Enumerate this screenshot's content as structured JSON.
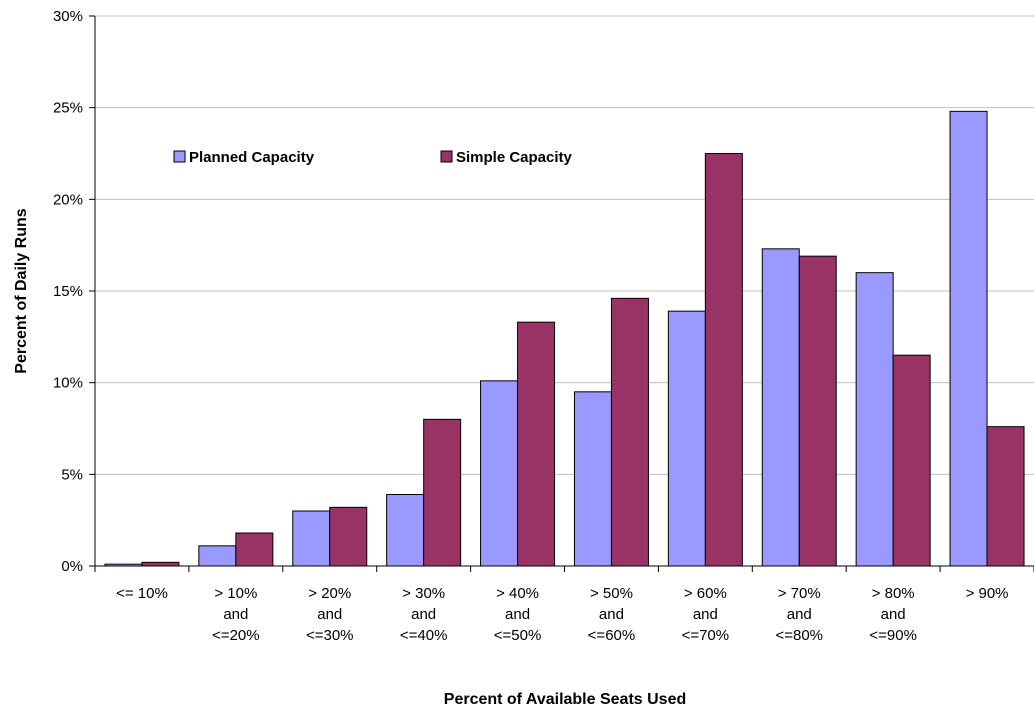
{
  "chart_data": {
    "type": "bar",
    "title": "",
    "xlabel": "Percent of Available Seats Used",
    "ylabel": "Percent of Daily Runs",
    "ylim": [
      0,
      30
    ],
    "yticks": [
      "0%",
      "5%",
      "10%",
      "15%",
      "20%",
      "25%",
      "30%"
    ],
    "grid": true,
    "legend_position": "top-left",
    "categories": [
      [
        "<= 10%"
      ],
      [
        "> 10%",
        "and",
        "<=20%"
      ],
      [
        "> 20%",
        "and",
        "<=30%"
      ],
      [
        "> 30%",
        "and",
        "<=40%"
      ],
      [
        "> 40%",
        "and",
        "<=50%"
      ],
      [
        "> 50%",
        "and",
        "<=60%"
      ],
      [
        "> 60%",
        "and",
        "<=70%"
      ],
      [
        "> 70%",
        "and",
        "<=80%"
      ],
      [
        "> 80%",
        "and",
        "<=90%"
      ],
      [
        "> 90%"
      ]
    ],
    "series": [
      {
        "name": "Planned Capacity",
        "color": "#9999FF",
        "values": [
          0.1,
          1.1,
          3.0,
          3.9,
          10.1,
          9.5,
          13.9,
          17.3,
          16.0,
          24.8
        ]
      },
      {
        "name": "Simple Capacity",
        "color": "#993366",
        "values": [
          0.2,
          1.8,
          3.2,
          8.0,
          13.3,
          14.6,
          22.5,
          16.9,
          11.5,
          7.6
        ]
      }
    ]
  }
}
